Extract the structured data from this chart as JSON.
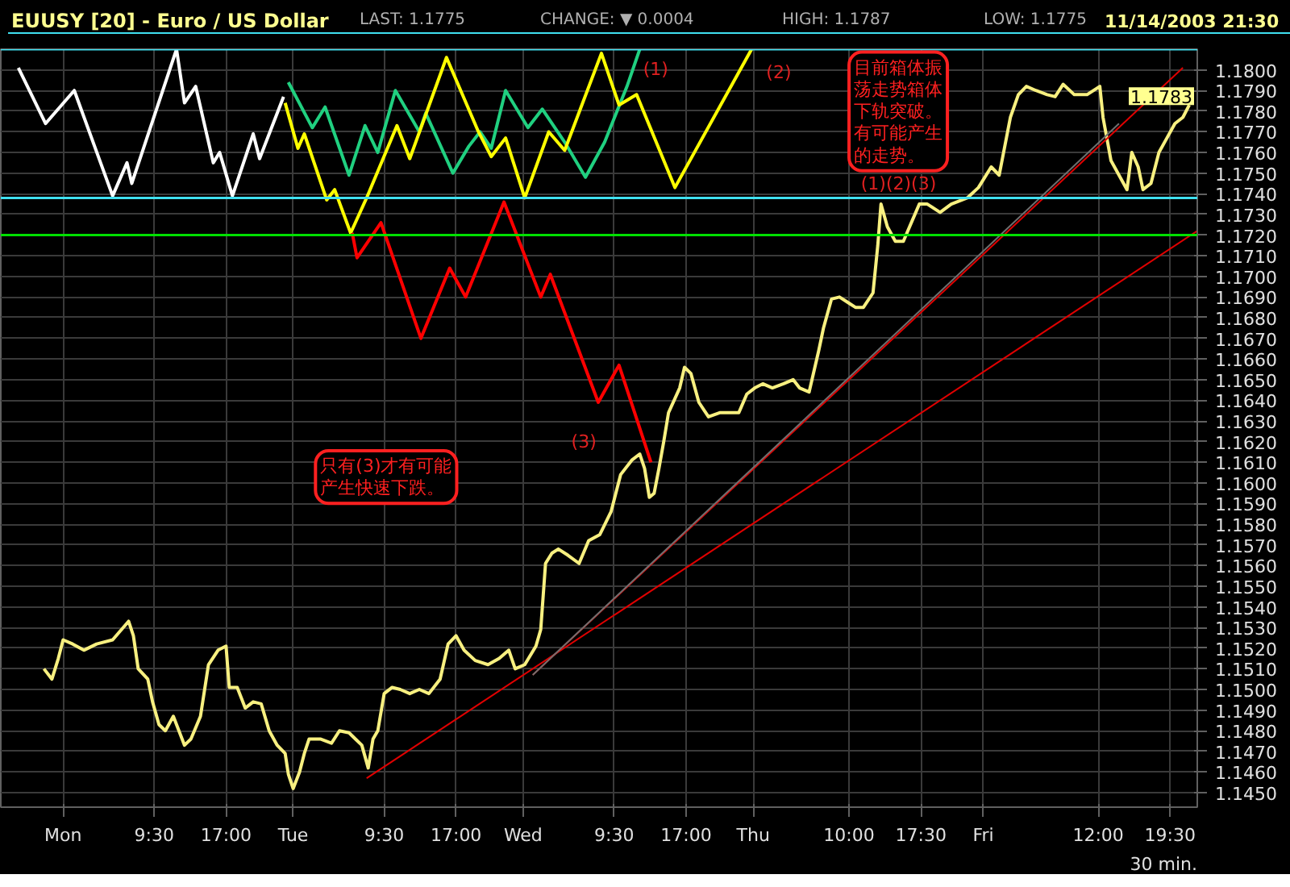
{
  "chart_data": {
    "type": "line",
    "title": "EUUSY [20] - Euro / US Dollar",
    "xlabel": "30 min.",
    "xlim": [
      "2003-11-09T17:30",
      "2003-11-14T22:20"
    ],
    "ylim": [
      1.1443,
      1.181
    ],
    "xticks": [
      {
        "value": "2003-11-10",
        "label": "Mon"
      },
      {
        "value": "2003-11-10T09:30",
        "label": "9:30"
      },
      {
        "value": "2003-11-10T17:00",
        "label": "17:00"
      },
      {
        "value": "2003-11-11",
        "label": "Tue"
      },
      {
        "value": "2003-11-11T09:30",
        "label": "9:30"
      },
      {
        "value": "2003-11-11T17:00",
        "label": "17:00"
      },
      {
        "value": "2003-11-12",
        "label": "Wed"
      },
      {
        "value": "2003-11-12T09:30",
        "label": "9:30"
      },
      {
        "value": "2003-11-12T17:00",
        "label": "17:00"
      },
      {
        "value": "2003-11-13",
        "label": "Thu"
      },
      {
        "value": "2003-11-13T10:00",
        "label": "10:00"
      },
      {
        "value": "2003-11-13T17:30",
        "label": "17:30"
      },
      {
        "value": "2003-11-14",
        "label": "Fri"
      },
      {
        "value": "2003-11-14T12:00",
        "label": "12:00"
      },
      {
        "value": "2003-11-14T19:30",
        "label": "19:30"
      }
    ],
    "yticks": [
      {
        "value": 1.145,
        "label": "1.1450"
      },
      {
        "value": 1.146,
        "label": "1.1460"
      },
      {
        "value": 1.147,
        "label": "1.1470"
      },
      {
        "value": 1.148,
        "label": "1.1480"
      },
      {
        "value": 1.149,
        "label": "1.1490"
      },
      {
        "value": 1.15,
        "label": "1.1500"
      },
      {
        "value": 1.151,
        "label": "1.1510"
      },
      {
        "value": 1.152,
        "label": "1.1520"
      },
      {
        "value": 1.153,
        "label": "1.1530"
      },
      {
        "value": 1.154,
        "label": "1.1540"
      },
      {
        "value": 1.155,
        "label": "1.1550"
      },
      {
        "value": 1.156,
        "label": "1.1560"
      },
      {
        "value": 1.157,
        "label": "1.1570"
      },
      {
        "value": 1.158,
        "label": "1.1580"
      },
      {
        "value": 1.159,
        "label": "1.1590"
      },
      {
        "value": 1.16,
        "label": "1.1600"
      },
      {
        "value": 1.161,
        "label": "1.1610"
      },
      {
        "value": 1.162,
        "label": "1.1620"
      },
      {
        "value": 1.163,
        "label": "1.1630"
      },
      {
        "value": 1.164,
        "label": "1.1640"
      },
      {
        "value": 1.165,
        "label": "1.1650"
      },
      {
        "value": 1.166,
        "label": "1.1660"
      },
      {
        "value": 1.167,
        "label": "1.1670"
      },
      {
        "value": 1.168,
        "label": "1.1680"
      },
      {
        "value": 1.169,
        "label": "1.1690"
      },
      {
        "value": 1.17,
        "label": "1.1700"
      },
      {
        "value": 1.171,
        "label": "1.1710"
      },
      {
        "value": 1.172,
        "label": "1.1720"
      },
      {
        "value": 1.173,
        "label": "1.1730"
      },
      {
        "value": 1.174,
        "label": "1.1740"
      },
      {
        "value": 1.175,
        "label": "1.1750"
      },
      {
        "value": 1.176,
        "label": "1.1760"
      },
      {
        "value": 1.177,
        "label": "1.1770"
      },
      {
        "value": 1.178,
        "label": "1.1780"
      },
      {
        "value": 1.179,
        "label": "1.1790"
      },
      {
        "value": 1.18,
        "label": "1.1800"
      }
    ],
    "grid": true,
    "ref_lines": [
      {
        "axis": "y",
        "value": 1.181,
        "color": "#40e0f0"
      },
      {
        "axis": "y",
        "value": 1.1738,
        "color": "#40e0f0"
      },
      {
        "axis": "y",
        "value": 1.172,
        "color": "#00e000"
      }
    ],
    "series": [
      {
        "color": "#f8f080",
        "x": [
          "2003-11-09T22:00",
          "2003-11-09T22:50",
          "2003-11-09T23:30",
          "2003-11-10T00:00",
          "2003-11-10T01:00",
          "2003-11-10T02:10",
          "2003-11-10T03:30",
          "2003-11-10T05:10",
          "2003-11-10T06:50",
          "2003-11-10T07:20",
          "2003-11-10T07:50",
          "2003-11-10T08:50",
          "2003-11-10T09:20",
          "2003-11-10T10:00",
          "2003-11-10T10:40",
          "2003-11-10T11:30",
          "2003-11-10T12:40",
          "2003-11-10T13:20",
          "2003-11-10T14:20",
          "2003-11-10T15:10",
          "2003-11-10T16:10",
          "2003-11-10T17:00",
          "2003-11-10T17:20",
          "2003-11-10T18:10",
          "2003-11-10T19:00",
          "2003-11-10T19:50",
          "2003-11-10T20:40",
          "2003-11-10T21:30",
          "2003-11-10T22:20",
          "2003-11-10T23:10",
          "2003-11-10T23:30",
          "2003-11-11T00:00",
          "2003-11-11T00:40",
          "2003-11-11T01:10",
          "2003-11-11T01:40",
          "2003-11-11T02:50",
          "2003-11-11T04:00",
          "2003-11-11T04:50",
          "2003-11-11T05:50",
          "2003-11-11T06:30",
          "2003-11-11T07:10",
          "2003-11-11T07:50",
          "2003-11-11T08:20",
          "2003-11-11T08:50",
          "2003-11-11T09:30",
          "2003-11-11T10:20",
          "2003-11-11T11:10",
          "2003-11-11T12:10",
          "2003-11-11T13:10",
          "2003-11-11T14:10",
          "2003-11-11T15:20",
          "2003-11-11T16:10",
          "2003-11-11T17:00",
          "2003-11-11T17:50",
          "2003-11-11T19:00",
          "2003-11-11T20:20",
          "2003-11-11T21:30",
          "2003-11-11T22:30",
          "2003-11-11T23:10",
          "2003-11-12T00:10",
          "2003-11-12T01:20",
          "2003-11-12T01:50",
          "2003-11-12T02:20",
          "2003-11-12T03:00",
          "2003-11-12T03:40",
          "2003-11-12T04:40",
          "2003-11-12T05:50",
          "2003-11-12T06:50",
          "2003-11-12T08:00",
          "2003-11-12T09:10",
          "2003-11-12T10:10",
          "2003-11-12T11:20",
          "2003-11-12T12:10",
          "2003-11-12T12:40",
          "2003-11-12T13:10",
          "2003-11-12T13:40",
          "2003-11-12T14:10",
          "2003-11-12T14:40",
          "2003-11-12T15:10",
          "2003-11-12T16:20",
          "2003-11-12T16:50",
          "2003-11-12T17:30",
          "2003-11-12T18:20",
          "2003-11-12T19:20",
          "2003-11-12T20:30",
          "2003-11-12T21:30",
          "2003-11-12T22:30",
          "2003-11-12T23:20",
          "2003-11-13T00:10",
          "2003-11-13T01:00",
          "2003-11-13T02:00",
          "2003-11-13T03:10",
          "2003-11-13T04:10",
          "2003-11-13T04:50",
          "2003-11-13T05:50",
          "2003-11-13T06:50",
          "2003-11-13T07:20",
          "2003-11-13T08:10",
          "2003-11-13T09:00",
          "2003-11-13T10:00",
          "2003-11-13T10:40",
          "2003-11-13T11:30",
          "2003-11-13T12:30",
          "2003-11-13T13:00",
          "2003-11-13T13:20",
          "2003-11-13T14:00",
          "2003-11-13T14:50",
          "2003-11-13T15:40",
          "2003-11-13T16:30",
          "2003-11-13T17:20",
          "2003-11-13T18:10",
          "2003-11-13T19:30",
          "2003-11-13T20:40",
          "2003-11-13T22:20",
          "2003-11-13T23:30",
          "2003-11-14T00:50",
          "2003-11-14T01:40",
          "2003-11-14T02:50",
          "2003-11-14T03:40",
          "2003-11-14T04:30",
          "2003-11-14T05:30",
          "2003-11-14T06:40",
          "2003-11-14T07:30",
          "2003-11-14T08:20",
          "2003-11-14T09:30",
          "2003-11-14T10:50",
          "2003-11-14T12:10",
          "2003-11-14T12:30",
          "2003-11-14T13:20",
          "2003-11-14T14:10",
          "2003-11-14T15:00",
          "2003-11-14T15:30",
          "2003-11-14T16:10",
          "2003-11-14T16:40",
          "2003-11-14T17:30",
          "2003-11-14T18:20",
          "2003-11-14T19:10",
          "2003-11-14T20:00",
          "2003-11-14T20:50",
          "2003-11-14T21:30"
        ],
        "values": [
          1.151,
          1.1505,
          1.1515,
          1.1524,
          1.1522,
          1.1519,
          1.1522,
          1.1524,
          1.1533,
          1.1526,
          1.151,
          1.1505,
          1.1494,
          1.1483,
          1.148,
          1.1487,
          1.1473,
          1.1476,
          1.1487,
          1.1512,
          1.1519,
          1.1521,
          1.1501,
          1.1501,
          1.1491,
          1.1494,
          1.1493,
          1.148,
          1.1473,
          1.1469,
          1.1459,
          1.1452,
          1.146,
          1.1469,
          1.1476,
          1.1476,
          1.1474,
          1.148,
          1.1479,
          1.1476,
          1.1473,
          1.1462,
          1.1476,
          1.148,
          1.1498,
          1.1501,
          1.15,
          1.1498,
          1.15,
          1.1498,
          1.1505,
          1.1522,
          1.1526,
          1.1519,
          1.1514,
          1.1512,
          1.1515,
          1.1519,
          1.151,
          1.1512,
          1.1521,
          1.1529,
          1.1561,
          1.1566,
          1.1568,
          1.1565,
          1.1561,
          1.1572,
          1.1575,
          1.1586,
          1.1604,
          1.1611,
          1.1614,
          1.1607,
          1.1593,
          1.1595,
          1.1607,
          1.162,
          1.1634,
          1.1646,
          1.1656,
          1.1653,
          1.1639,
          1.1632,
          1.1634,
          1.1634,
          1.1634,
          1.1643,
          1.1646,
          1.1648,
          1.1646,
          1.1648,
          1.165,
          1.1646,
          1.1644,
          1.1664,
          1.1675,
          1.1689,
          1.169,
          1.1687,
          1.1685,
          1.1685,
          1.1692,
          1.1715,
          1.1735,
          1.1724,
          1.1717,
          1.1717,
          1.1726,
          1.1735,
          1.1735,
          1.1731,
          1.1735,
          1.1738,
          1.1743,
          1.1753,
          1.1749,
          1.1777,
          1.1788,
          1.1792,
          1.179,
          1.1788,
          1.1787,
          1.1793,
          1.1788,
          1.1788,
          1.1792,
          1.1777,
          1.1756,
          1.1749,
          1.1742,
          1.176,
          1.1753,
          1.1742,
          1.1745,
          1.176,
          1.1767,
          1.1774,
          1.1777,
          1.1783
        ]
      },
      {
        "color": "#ffffff",
        "x": [
          "2003-11-09T19:20",
          "2003-11-09T22:10",
          "2003-11-10T01:10",
          "2003-11-10T05:10",
          "2003-11-10T06:40",
          "2003-11-10T07:10",
          "2003-11-10T11:50",
          "2003-11-10T12:40",
          "2003-11-10T13:50",
          "2003-11-10T15:40",
          "2003-11-10T16:20",
          "2003-11-10T17:40",
          "2003-11-10T19:50",
          "2003-11-10T20:30",
          "2003-11-10T23:00"
        ],
        "values": [
          1.1801,
          1.1774,
          1.179,
          1.1739,
          1.1755,
          1.1745,
          1.181,
          1.1784,
          1.1792,
          1.1755,
          1.176,
          1.1739,
          1.1769,
          1.1757,
          1.1787
        ]
      },
      {
        "color": "#20d080",
        "x": [
          "2003-11-10T23:30",
          "2003-11-11T02:00",
          "2003-11-11T03:20",
          "2003-11-11T05:50",
          "2003-11-11T07:30",
          "2003-11-11T08:50",
          "2003-11-11T10:40",
          "2003-11-11T13:10",
          "2003-11-11T13:50",
          "2003-11-11T16:40",
          "2003-11-11T18:20",
          "2003-11-11T19:30",
          "2003-11-11T20:40",
          "2003-11-11T22:10",
          "2003-11-12T00:30",
          "2003-11-12T02:00",
          "2003-11-12T04:20",
          "2003-11-12T06:30",
          "2003-11-12T08:30",
          "2003-11-12T10:50",
          "2003-11-12T12:10"
        ],
        "values": [
          1.1794,
          1.1772,
          1.1782,
          1.1749,
          1.1773,
          1.176,
          1.179,
          1.177,
          1.1779,
          1.175,
          1.1763,
          1.177,
          1.1762,
          1.179,
          1.1772,
          1.1781,
          1.1765,
          1.1748,
          1.1765,
          1.1792,
          1.181
        ]
      },
      {
        "color": "#ffff00",
        "x": [
          "2003-11-10T23:10",
          "2003-11-11T00:30",
          "2003-11-11T01:10",
          "2003-11-11T03:30",
          "2003-11-11T04:20",
          "2003-11-11T06:00",
          "2003-11-11T07:40",
          "2003-11-11T10:50",
          "2003-11-11T12:10",
          "2003-11-11T16:00",
          "2003-11-11T19:20",
          "2003-11-11T20:40",
          "2003-11-11T22:10",
          "2003-11-12T00:10",
          "2003-11-12T02:40",
          "2003-11-12T04:20",
          "2003-11-12T08:10",
          "2003-11-12T10:00",
          "2003-11-12T11:50",
          "2003-11-12T15:50",
          "2003-11-12T23:50"
        ],
        "values": [
          1.1784,
          1.1762,
          1.1769,
          1.1737,
          1.1742,
          1.1721,
          1.1738,
          1.1773,
          1.1757,
          1.1806,
          1.177,
          1.1758,
          1.1767,
          1.1738,
          1.177,
          1.1761,
          1.1808,
          1.1783,
          1.1788,
          1.1743,
          1.181
        ]
      },
      {
        "color": "#ff0000",
        "x": [
          "2003-11-11T06:10",
          "2003-11-11T06:40",
          "2003-11-11T09:10",
          "2003-11-11T13:20",
          "2003-11-11T16:20",
          "2003-11-11T18:00",
          "2003-11-11T22:00",
          "2003-11-12T01:50",
          "2003-11-12T02:50",
          "2003-11-12T07:50",
          "2003-11-12T10:00",
          "2003-11-12T13:20"
        ],
        "values": [
          1.1721,
          1.1709,
          1.1726,
          1.167,
          1.1704,
          1.169,
          1.1736,
          1.169,
          1.1701,
          1.1639,
          1.1657,
          1.161
        ]
      },
      {
        "color": "#e00000",
        "x": [
          "2003-11-12T01:00",
          "2003-11-14T20:50"
        ],
        "values": [
          1.1507,
          1.1801
        ]
      },
      {
        "color": "#e00000",
        "x": [
          "2003-11-11T07:40",
          "2003-11-14T22:20"
        ],
        "values": [
          1.1457,
          1.1722
        ]
      },
      {
        "color": "#707070",
        "x": [
          "2003-11-12T01:00",
          "2003-11-14T14:10"
        ],
        "values": [
          1.1507,
          1.1774
        ]
      }
    ],
    "annotations": [
      "LAST: 1.1775",
      "CHANGE: ▼ 0.0004",
      "HIGH: 1.1787",
      "LOW: 1.1775",
      "11/14/2003 21:30",
      "目前箱体振荡走势箱体下轨突破。有可能产生的走势。",
      "只有(3)才有可能产生快速下跌。",
      "(1)",
      "(2)",
      "(3)",
      "(1)(2)(3)",
      "1.1783"
    ]
  }
}
